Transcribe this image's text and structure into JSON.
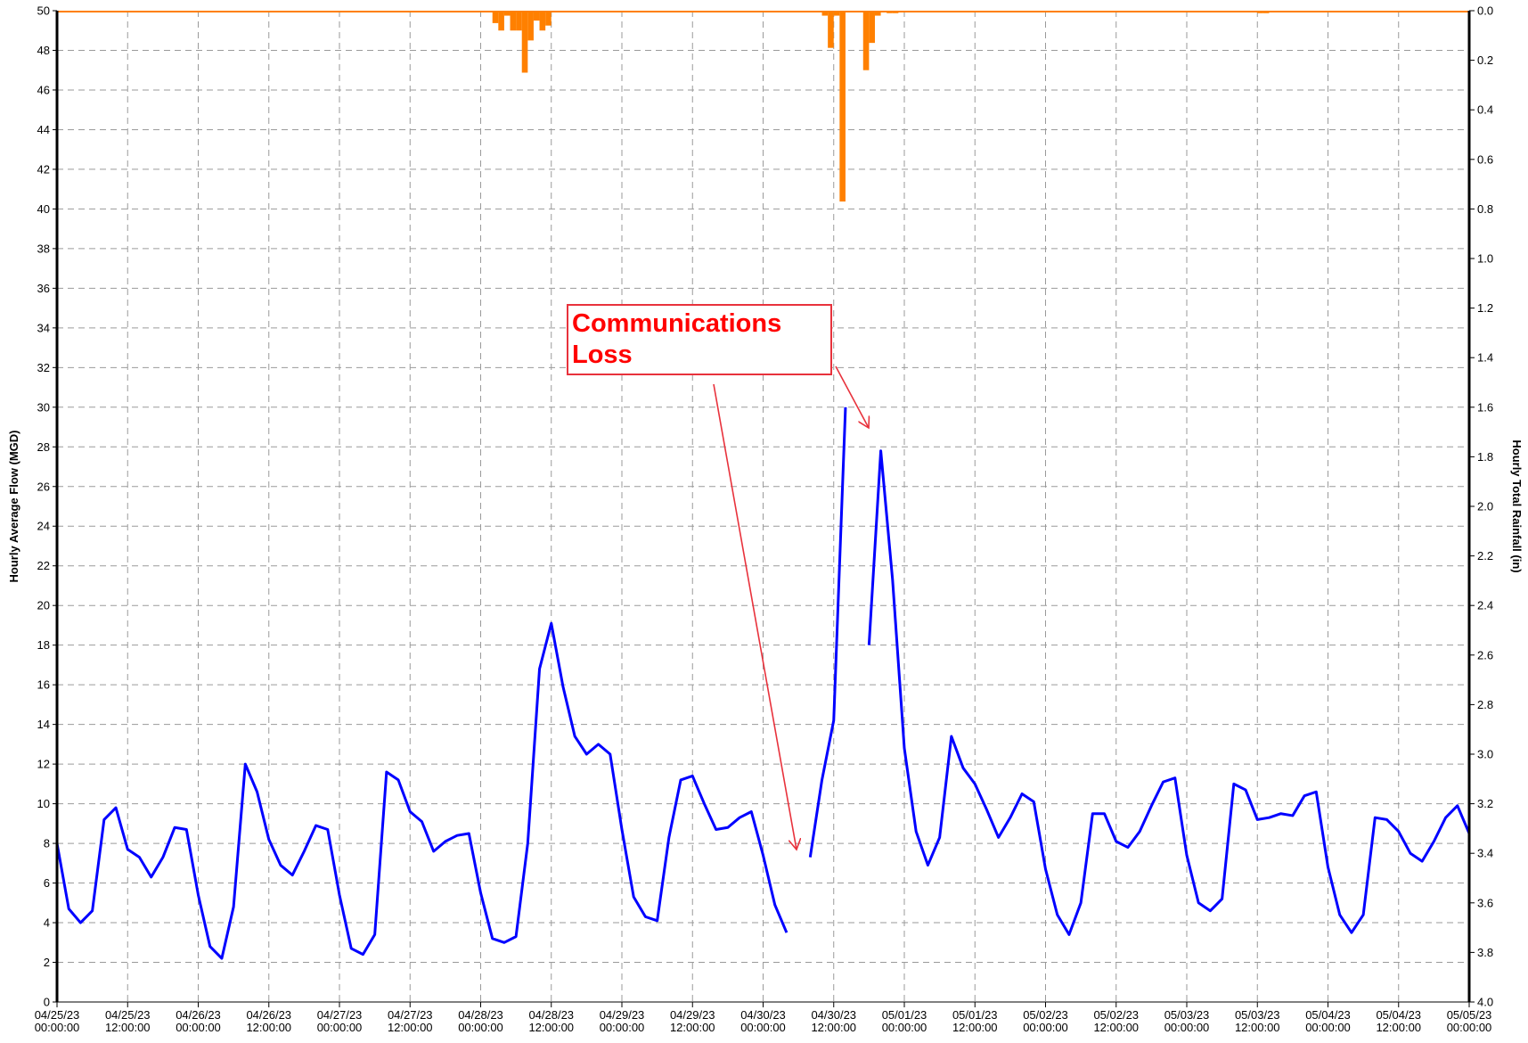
{
  "chart_data": {
    "type": "line",
    "y_label": "Hourly Average Flow (MGD)",
    "y2_label": "Hourly Total Rainfall (in)",
    "annotation": "Communications Loss",
    "xlim": [
      "04/25/23 00:00:00",
      "05/05/23 00:00:00"
    ],
    "xticks": [
      "04/25/23 00:00:00",
      "04/25/23 12:00:00",
      "04/26/23 00:00:00",
      "04/26/23 12:00:00",
      "04/27/23 00:00:00",
      "04/27/23 12:00:00",
      "04/28/23 00:00:00",
      "04/28/23 12:00:00",
      "04/29/23 00:00:00",
      "04/29/23 12:00:00",
      "04/30/23 00:00:00",
      "04/30/23 12:00:00",
      "05/01/23 00:00:00",
      "05/01/23 12:00:00",
      "05/02/23 00:00:00",
      "05/02/23 12:00:00",
      "05/03/23 00:00:00",
      "05/03/23 12:00:00",
      "05/04/23 00:00:00",
      "05/04/23 12:00:00",
      "05/05/23 00:00:00"
    ],
    "ylim": [
      0,
      50
    ],
    "yticks": [
      0,
      2,
      4,
      6,
      8,
      10,
      12,
      14,
      16,
      18,
      20,
      22,
      24,
      26,
      28,
      30,
      32,
      34,
      36,
      38,
      40,
      42,
      44,
      46,
      48,
      50
    ],
    "y2lim": [
      0,
      4
    ],
    "y2_inverted": true,
    "y2ticks": [
      {
        "value": 0,
        "label": "0.0"
      },
      0.2,
      0.4,
      0.6,
      0.8,
      {
        "value": 1,
        "label": "1.0"
      },
      1.2,
      1.4,
      1.6,
      1.8,
      {
        "value": 2,
        "label": "2.0"
      },
      2.2,
      2.4,
      2.6,
      2.8,
      {
        "value": 3,
        "label": "3.0"
      },
      3.2,
      3.4,
      3.6,
      3.8,
      {
        "value": 4,
        "label": "4.0"
      }
    ],
    "grid": true,
    "series": [
      {
        "type": "line",
        "color": "#0000ff",
        "x": [
          "04/25/23 00:00:00",
          "04/25/23 02:00:00",
          "04/25/23 04:00:00",
          "04/25/23 06:00:00",
          "04/25/23 08:00:00",
          "04/25/23 10:00:00",
          "04/25/23 12:00:00",
          "04/25/23 14:00:00",
          "04/25/23 16:00:00",
          "04/25/23 18:00:00",
          "04/25/23 20:00:00",
          "04/25/23 22:00:00",
          "04/26/23 00:00:00",
          "04/26/23 02:00:00",
          "04/26/23 04:00:00",
          "04/26/23 06:00:00",
          "04/26/23 08:00:00",
          "04/26/23 10:00:00",
          "04/26/23 12:00:00",
          "04/26/23 14:00:00",
          "04/26/23 16:00:00",
          "04/26/23 18:00:00",
          "04/26/23 20:00:00",
          "04/26/23 22:00:00",
          "04/27/23 00:00:00",
          "04/27/23 02:00:00",
          "04/27/23 04:00:00",
          "04/27/23 06:00:00",
          "04/27/23 08:00:00",
          "04/27/23 10:00:00",
          "04/27/23 12:00:00",
          "04/27/23 14:00:00",
          "04/27/23 16:00:00",
          "04/27/23 18:00:00",
          "04/27/23 20:00:00",
          "04/27/23 22:00:00",
          "04/28/23 00:00:00",
          "04/28/23 02:00:00",
          "04/28/23 04:00:00",
          "04/28/23 06:00:00",
          "04/28/23 08:00:00",
          "04/28/23 10:00:00",
          "04/28/23 12:00:00",
          "04/28/23 14:00:00",
          "04/28/23 16:00:00",
          "04/28/23 18:00:00",
          "04/28/23 20:00:00",
          "04/28/23 22:00:00",
          "04/29/23 00:00:00",
          "04/29/23 02:00:00",
          "04/29/23 04:00:00",
          "04/29/23 06:00:00",
          "04/29/23 08:00:00",
          "04/29/23 10:00:00",
          "04/29/23 12:00:00",
          "04/29/23 14:00:00",
          "04/29/23 16:00:00",
          "04/29/23 18:00:00",
          "04/29/23 20:00:00",
          "04/29/23 22:00:00",
          "04/30/23 00:00:00",
          "04/30/23 02:00:00",
          "04/30/23 04:00:00",
          "04/30/23 06:00:00",
          "04/30/23 08:00:00",
          "04/30/23 10:00:00",
          "04/30/23 12:00:00",
          "04/30/23 14:00:00",
          "04/30/23 16:00:00",
          "04/30/23 18:00:00",
          "04/30/23 20:00:00",
          "04/30/23 22:00:00",
          "05/01/23 00:00:00",
          "05/01/23 02:00:00",
          "05/01/23 04:00:00",
          "05/01/23 06:00:00",
          "05/01/23 08:00:00",
          "05/01/23 10:00:00",
          "05/01/23 12:00:00",
          "05/01/23 14:00:00",
          "05/01/23 16:00:00",
          "05/01/23 18:00:00",
          "05/01/23 20:00:00",
          "05/01/23 22:00:00",
          "05/02/23 00:00:00",
          "05/02/23 02:00:00",
          "05/02/23 04:00:00",
          "05/02/23 06:00:00",
          "05/02/23 08:00:00",
          "05/02/23 10:00:00",
          "05/02/23 12:00:00",
          "05/02/23 14:00:00",
          "05/02/23 16:00:00",
          "05/02/23 18:00:00",
          "05/02/23 20:00:00",
          "05/02/23 22:00:00",
          "05/03/23 00:00:00",
          "05/03/23 02:00:00",
          "05/03/23 04:00:00",
          "05/03/23 06:00:00",
          "05/03/23 08:00:00",
          "05/03/23 10:00:00",
          "05/03/23 12:00:00",
          "05/03/23 14:00:00",
          "05/03/23 16:00:00",
          "05/03/23 18:00:00",
          "05/03/23 20:00:00",
          "05/03/23 22:00:00",
          "05/04/23 00:00:00",
          "05/04/23 02:00:00",
          "05/04/23 04:00:00",
          "05/04/23 06:00:00",
          "05/04/23 08:00:00",
          "05/04/23 10:00:00",
          "05/04/23 12:00:00",
          "05/04/23 14:00:00",
          "05/04/23 16:00:00",
          "05/04/23 18:00:00",
          "05/04/23 20:00:00",
          "05/04/23 22:00:00",
          "05/05/23 00:00:00"
        ],
        "values": [
          8.0,
          4.7,
          4.0,
          4.6,
          9.2,
          9.8,
          7.7,
          7.3,
          6.3,
          7.3,
          8.8,
          8.7,
          5.4,
          2.8,
          2.2,
          4.8,
          12.0,
          10.6,
          8.2,
          6.9,
          6.4,
          7.6,
          8.9,
          8.7,
          5.4,
          2.7,
          2.4,
          3.4,
          11.6,
          11.2,
          9.6,
          9.1,
          7.6,
          8.1,
          8.4,
          8.5,
          5.5,
          3.2,
          3.0,
          3.3,
          8.0,
          16.8,
          19.1,
          15.9,
          13.4,
          12.5,
          13.0,
          12.5,
          8.7,
          5.3,
          4.3,
          4.1,
          8.3,
          11.2,
          11.4,
          10.0,
          8.7,
          8.8,
          9.3,
          9.6,
          7.4,
          4.9,
          3.5,
          null,
          7.3,
          11.2,
          14.2,
          30.0,
          null,
          18.0,
          27.8,
          21.3,
          12.8,
          8.6,
          6.9,
          8.3,
          13.4,
          11.8,
          11.0,
          9.7,
          8.3,
          9.3,
          10.5,
          10.1,
          6.7,
          4.4,
          3.4,
          5.0,
          9.5,
          9.5,
          8.1,
          7.8,
          8.6,
          9.9,
          11.1,
          11.3,
          7.4,
          5.0,
          4.6,
          5.2,
          11.0,
          10.7,
          9.2,
          9.3,
          9.5,
          9.4,
          10.4,
          10.6,
          6.8,
          4.4,
          3.5,
          4.4,
          9.3,
          9.2,
          8.6,
          7.5,
          7.1,
          8.1,
          9.3,
          9.9,
          8.5
        ]
      },
      {
        "type": "bar",
        "color": "#ff8000",
        "axis": "y2",
        "x": [
          "04/28/23 02:00:00",
          "04/28/23 03:00:00",
          "04/28/23 04:00:00",
          "04/28/23 05:00:00",
          "04/28/23 06:00:00",
          "04/28/23 07:00:00",
          "04/28/23 08:00:00",
          "04/28/23 09:00:00",
          "04/28/23 10:00:00",
          "04/28/23 11:00:00",
          "04/30/23 10:00:00",
          "04/30/23 11:00:00",
          "04/30/23 12:00:00",
          "04/30/23 13:00:00",
          "04/30/23 17:00:00",
          "04/30/23 18:00:00",
          "04/30/23 19:00:00",
          "04/30/23 21:00:00",
          "04/30/23 22:00:00",
          "05/03/23 12:00:00",
          "05/03/23 13:00:00"
        ],
        "values": [
          0.05,
          0.08,
          0.02,
          0.08,
          0.08,
          0.25,
          0.12,
          0.04,
          0.08,
          0.06,
          0.02,
          0.15,
          0.02,
          0.77,
          0.24,
          0.13,
          0.02,
          0.01,
          0.01,
          0.01,
          0.01
        ]
      }
    ]
  }
}
